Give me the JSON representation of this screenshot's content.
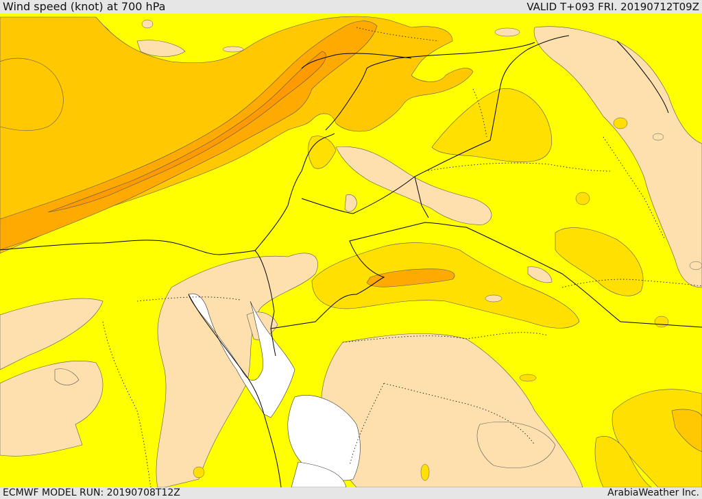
{
  "header": {
    "title": "Wind speed (knot) at 700 hPa",
    "valid": "VALID T+093 FRI. 20190712T09Z"
  },
  "footer": {
    "model_run": "ECMWF MODEL RUN: 20190708T12Z",
    "credit": "ArabiaWeather Inc."
  },
  "colors": {
    "lowest": "#fde0ad",
    "low": "#ffff00",
    "medium": "#ffe000",
    "high": "#ffc800",
    "higher": "#ffaa00",
    "highest": "#ff9a00",
    "sea": "#ffffff",
    "border": "#000000"
  }
}
